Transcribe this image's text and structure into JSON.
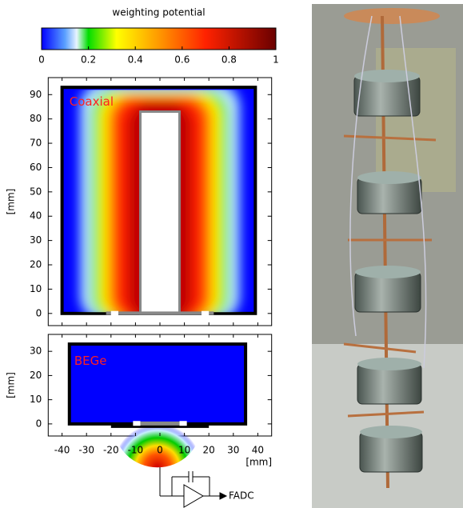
{
  "chart_data": [
    {
      "type": "colorbar",
      "title": "weighting potential",
      "xlim": [
        0,
        1
      ],
      "xticks": [
        0,
        0.2,
        0.4,
        0.6,
        0.8,
        1
      ]
    },
    {
      "type": "heatmap",
      "label": "Coaxial",
      "ylabel": "[mm]",
      "xlim": [
        -45,
        45
      ],
      "ylim": [
        -5,
        97
      ],
      "xticks": [
        -40,
        -30,
        -20,
        -10,
        0,
        10,
        20,
        30,
        40
      ],
      "yticks": [
        0,
        10,
        20,
        30,
        40,
        50,
        60,
        70,
        80,
        90
      ]
    },
    {
      "type": "heatmap",
      "label": "BEGe",
      "ylabel": "[mm]",
      "xlabel": "[mm]",
      "xlim": [
        -45,
        45
      ],
      "ylim": [
        -5,
        37
      ],
      "xticks": [
        -40,
        -30,
        -20,
        -10,
        0,
        10,
        20,
        30,
        40
      ],
      "yticks": [
        0,
        10,
        20,
        30
      ]
    }
  ],
  "circuit_label": "FADC"
}
